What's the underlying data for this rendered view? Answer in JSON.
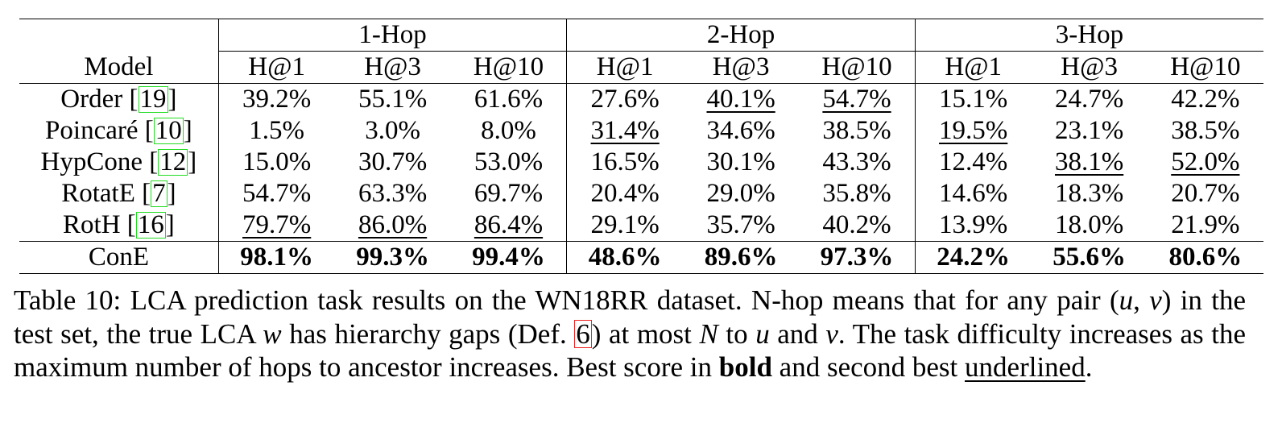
{
  "table": {
    "groups": [
      "1-Hop",
      "2-Hop",
      "3-Hop"
    ],
    "model_header": "Model",
    "metrics": [
      "H@1",
      "H@3",
      "H@10",
      "H@1",
      "H@3",
      "H@10",
      "H@1",
      "H@3",
      "H@10"
    ],
    "rows": [
      {
        "model": "Order",
        "cite": "19",
        "values": [
          "39.2%",
          "55.1%",
          "61.6%",
          "27.6%",
          "40.1%",
          "54.7%",
          "15.1%",
          "24.7%",
          "42.2%"
        ],
        "underline": [
          4,
          5
        ],
        "bold": []
      },
      {
        "model": "Poincaré",
        "cite": "10",
        "values": [
          "1.5%",
          "3.0%",
          "8.0%",
          "31.4%",
          "34.6%",
          "38.5%",
          "19.5%",
          "23.1%",
          "38.5%"
        ],
        "underline": [
          3,
          6
        ],
        "bold": []
      },
      {
        "model": "HypCone",
        "cite": "12",
        "values": [
          "15.0%",
          "30.7%",
          "53.0%",
          "16.5%",
          "30.1%",
          "43.3%",
          "12.4%",
          "38.1%",
          "52.0%"
        ],
        "underline": [
          7,
          8
        ],
        "bold": []
      },
      {
        "model": "RotatE",
        "cite": "7",
        "values": [
          "54.7%",
          "63.3%",
          "69.7%",
          "20.4%",
          "29.0%",
          "35.8%",
          "14.6%",
          "18.3%",
          "20.7%"
        ],
        "underline": [],
        "bold": []
      },
      {
        "model": "RotH",
        "cite": "16",
        "values": [
          "79.7%",
          "86.0%",
          "86.4%",
          "29.1%",
          "35.7%",
          "40.2%",
          "13.9%",
          "18.0%",
          "21.9%"
        ],
        "underline": [
          0,
          1,
          2
        ],
        "bold": []
      },
      {
        "model": "ConE",
        "cite": "",
        "values": [
          "98.1%",
          "99.3%",
          "99.4%",
          "48.6%",
          "89.6%",
          "97.3%",
          "24.2%",
          "55.6%",
          "80.6%"
        ],
        "underline": [],
        "bold": [
          0,
          1,
          2,
          3,
          4,
          5,
          6,
          7,
          8
        ]
      }
    ]
  },
  "caption": {
    "label": "Table 10:",
    "part1": " LCA prediction task results on the WN18RR dataset. N-hop means that for any pair (",
    "math_u": "u",
    "comma": ", ",
    "math_v": "v",
    "part2": ") in the test set, the true LCA ",
    "math_w": "w",
    "part3": " has hierarchy gaps (Def. ",
    "def_ref": "6",
    "part4": ") at most ",
    "math_N": "N",
    "part5": " to ",
    "math_u2": "u",
    "part6": " and ",
    "math_v2": "v",
    "part7": ". The task difficulty increases as the maximum number of hops to ancestor increases. Best score in ",
    "bold_word": "bold",
    "part8": " and second best ",
    "underlined_word": "underlined",
    "end": "."
  },
  "colors": {
    "citation_box": "#22dd22",
    "reference_box": "#ee2222"
  }
}
